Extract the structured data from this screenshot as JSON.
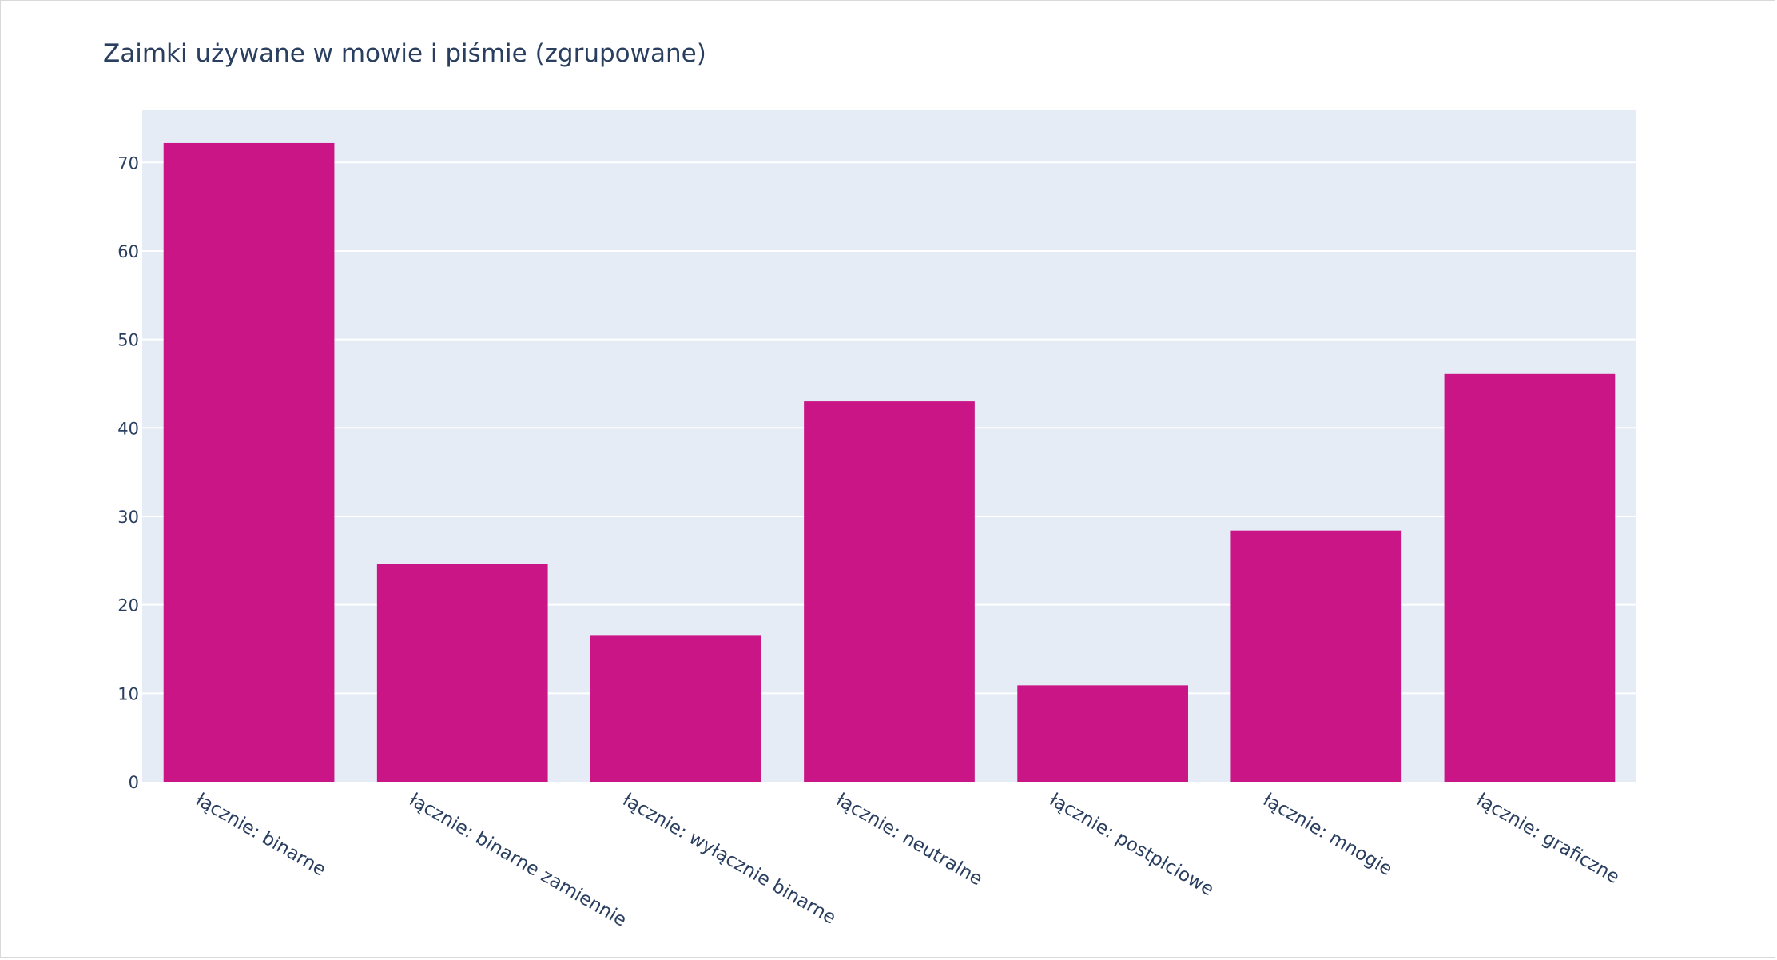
{
  "chart_data": {
    "type": "bar",
    "title": "Zaimki używane w mowie i piśmie (zgrupowane)",
    "categories": [
      "łącznie: binarne",
      "łącznie: binarne zamiennie",
      "łącznie: wyłącznie binarne",
      "łącznie: neutralne",
      "łącznie: postpłciowe",
      "łącznie: mnogie",
      "łącznie: graficzne"
    ],
    "values": [
      72.2,
      24.6,
      16.5,
      43.0,
      10.9,
      28.4,
      46.1
    ],
    "y_ticks": [
      0,
      10,
      20,
      30,
      40,
      50,
      60,
      70
    ],
    "ylim": [
      0,
      75.9
    ],
    "xlabel": "",
    "ylabel": "",
    "grid": true,
    "legend": "none",
    "colors": {
      "bar": "#c91585",
      "plot_background": "#e5ecf6",
      "gridline": "#ffffff",
      "text": "#2a3f5f"
    }
  }
}
